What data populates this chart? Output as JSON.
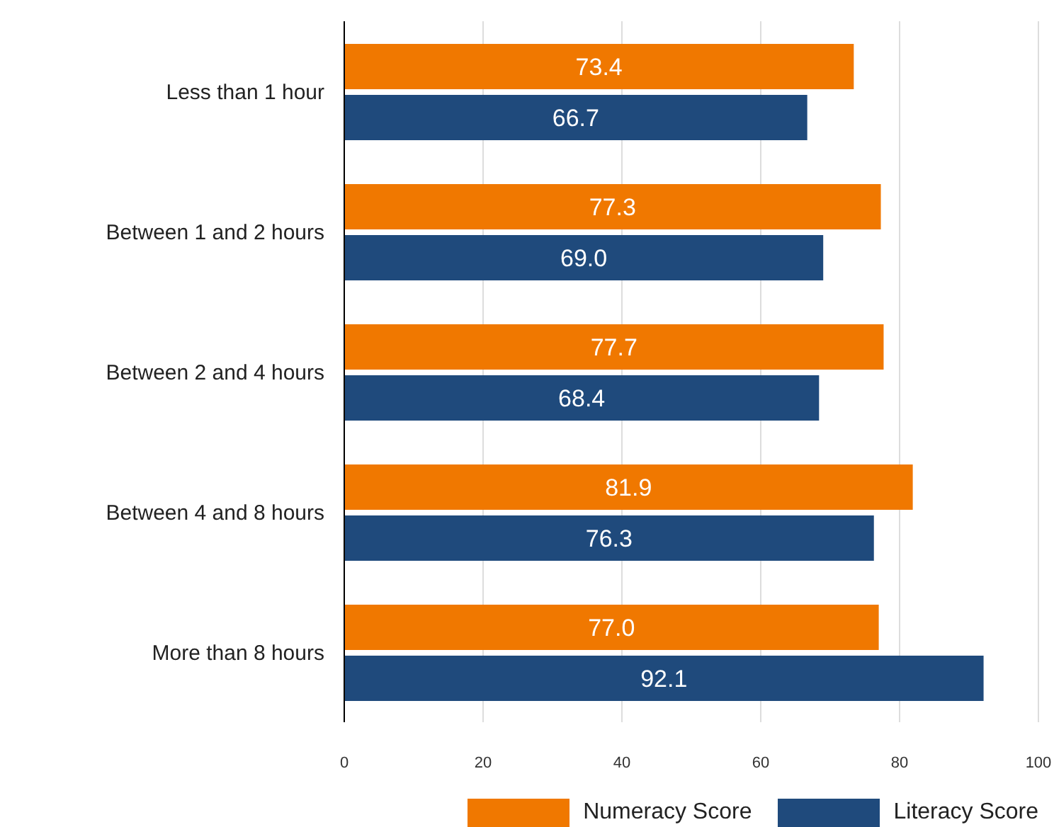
{
  "chart_data": {
    "type": "bar",
    "orientation": "horizontal",
    "categories": [
      "Less than 1 hour",
      "Between 1 and 2 hours",
      "Between 2 and 4 hours",
      "Between 4 and 8 hours",
      "More than 8 hours"
    ],
    "series": [
      {
        "name": "Numeracy Score",
        "color": "#f07800",
        "values": [
          73.4,
          77.3,
          77.7,
          81.9,
          77.0
        ],
        "value_labels": [
          "73.4",
          "77.3",
          "77.7",
          "81.9",
          "77.0"
        ]
      },
      {
        "name": "Literacy Score",
        "color": "#1f4a7c",
        "values": [
          66.7,
          69.0,
          68.4,
          76.3,
          92.1
        ],
        "value_labels": [
          "66.7",
          "69.0",
          "68.4",
          "76.3",
          "92.1"
        ]
      }
    ],
    "xlim": [
      0,
      100
    ],
    "xticks": [
      0,
      20,
      40,
      60,
      80,
      100
    ],
    "grid": "x",
    "legend": "bottom"
  }
}
